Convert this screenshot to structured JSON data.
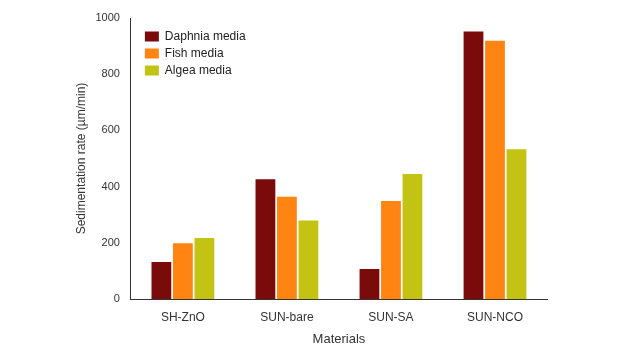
{
  "chart_data": {
    "type": "bar",
    "x_label": "Materials",
    "y_label": "Sedimentation rate (µm/min)",
    "categories": [
      "SH-ZnO",
      "SUN-bare",
      "SUN-SA",
      "SUN-NCO"
    ],
    "series": [
      {
        "name": "Daphnia media",
        "color": "#7b0a0a",
        "values": [
          132,
          426,
          107,
          952
        ]
      },
      {
        "name": "Fish media",
        "color": "#ff8412",
        "values": [
          198,
          364,
          349,
          919
        ]
      },
      {
        "name": "Algea media",
        "color": "#c2c312",
        "values": [
          217,
          279,
          445,
          533
        ]
      }
    ],
    "ylim": [
      0,
      1000
    ],
    "yticks": [
      0,
      200,
      400,
      600,
      800,
      1000
    ],
    "grid": false,
    "legend": "upper left"
  }
}
